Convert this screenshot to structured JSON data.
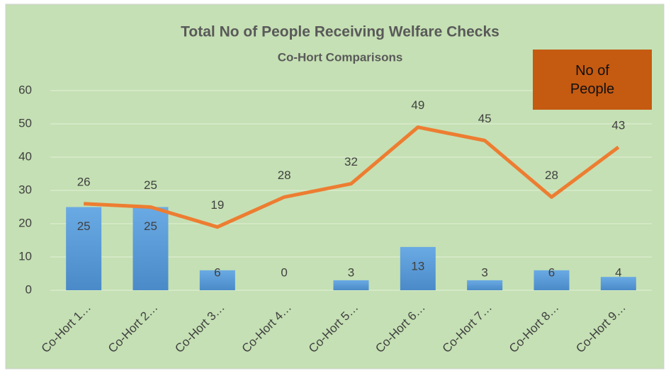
{
  "chart_data": {
    "type": "combo",
    "title": "Total No of People Receiving Welfare Checks",
    "subtitle": "Co-Hort Comparisons",
    "annotation": "No of People",
    "categories": [
      "Co-Hort 1…",
      "Co-Hort 2…",
      "Co-Hort 3…",
      "Co-Hort 4…",
      "Co-Hort 5…",
      "Co-Hort 6…",
      "Co-Hort 7…",
      "Co-Hort 8…",
      "Co-Hort 9…"
    ],
    "series": [
      {
        "type": "bar",
        "color": "#5b9bd5",
        "values": [
          25,
          25,
          6,
          0,
          3,
          13,
          3,
          6,
          4
        ]
      },
      {
        "type": "line",
        "color": "#ed7d31",
        "values": [
          26,
          25,
          19,
          28,
          32,
          49,
          45,
          28,
          43
        ]
      }
    ],
    "ylim": [
      0,
      60
    ],
    "yticks": [
      0,
      10,
      20,
      30,
      40,
      50,
      60
    ],
    "grid": true
  }
}
